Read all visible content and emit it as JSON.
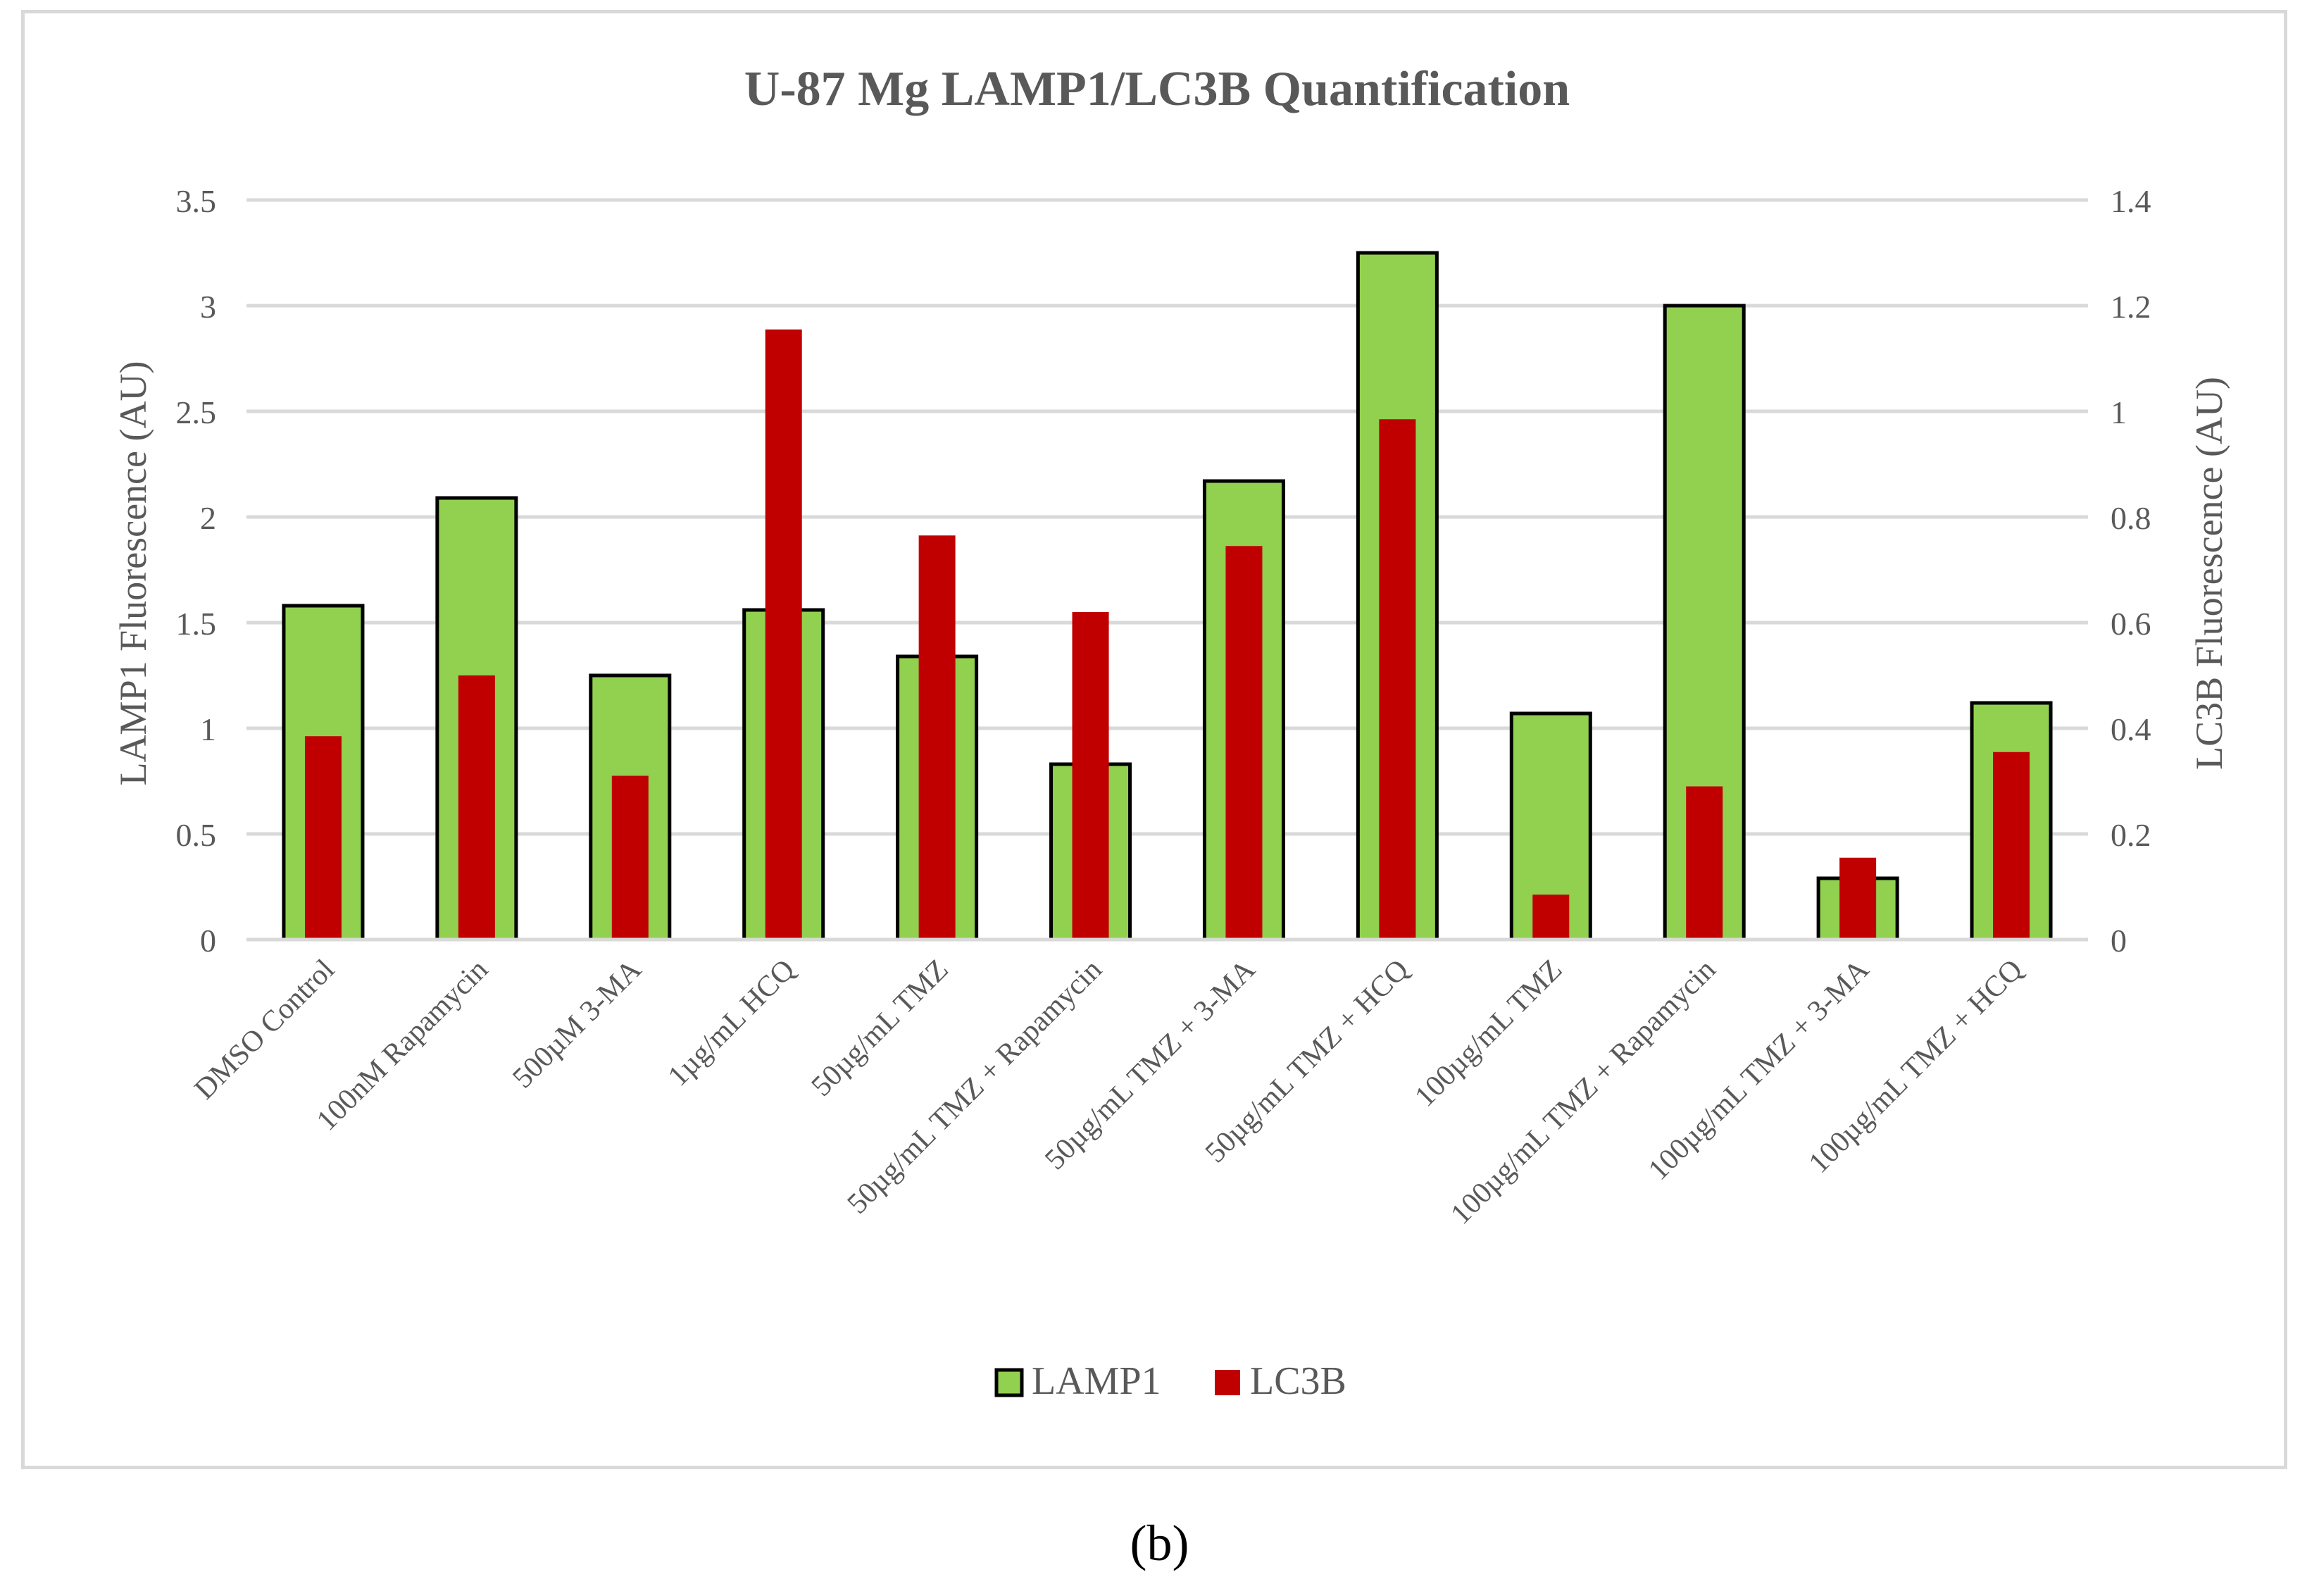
{
  "caption": "(b)",
  "chart_data": {
    "type": "bar",
    "title": "U-87 Mg LAMP1/LC3B Quantification",
    "ylabel": "LAMP1 Fluorescence (AU)",
    "y2label": "LC3B Fluorescence (AU)",
    "ylim": [
      0,
      3.5
    ],
    "y2lim": [
      0,
      1.4
    ],
    "yticks": [
      "0",
      "0.5",
      "1",
      "1.5",
      "2",
      "2.5",
      "3",
      "3.5"
    ],
    "y2ticks": [
      "0",
      "0.2",
      "0.4",
      "0.6",
      "0.8",
      "1",
      "1.2",
      "1.4"
    ],
    "grid": true,
    "legend_position": "bottom",
    "categories": [
      "DMSO Control",
      "100nM Rapamycin",
      "500µM 3-MA",
      "1µg/mL HCQ",
      "50µg/mL TMZ",
      "50µg/mL TMZ + Rapamycin",
      "50µg/mL TMZ + 3-MA",
      "50µg/mL TMZ + HCQ",
      "100µg/mL TMZ",
      "100µg/mL TMZ + Rapamycin",
      "100µg/mL TMZ + 3-MA",
      "100µg/mL TMZ + HCQ"
    ],
    "series": [
      {
        "name": "LAMP1",
        "axis": "left",
        "color": "#92d050",
        "values": [
          1.58,
          2.09,
          1.25,
          1.56,
          1.34,
          0.83,
          2.17,
          3.25,
          1.07,
          3.0,
          0.29,
          1.12
        ]
      },
      {
        "name": "LC3B",
        "axis": "right",
        "color": "#c00000",
        "values": [
          0.385,
          0.5,
          0.31,
          1.155,
          0.765,
          0.62,
          0.745,
          0.985,
          0.085,
          0.29,
          0.155,
          0.355
        ]
      }
    ]
  }
}
